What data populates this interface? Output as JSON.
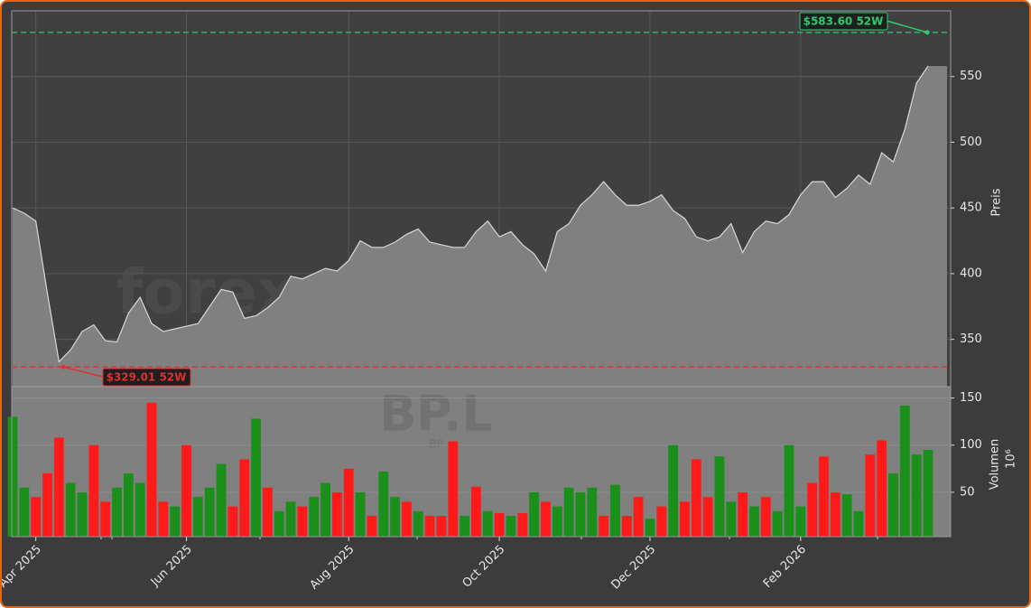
{
  "chart_data": [
    {
      "type": "area",
      "ylabel": "Preis",
      "color": "#808080",
      "line_color": "#d8d8d8",
      "categories": [
        null,
        null,
        "Apr 2025",
        null,
        null,
        null,
        null,
        null,
        null,
        null,
        null,
        null,
        null,
        null,
        null,
        "Jun 2025",
        null,
        null,
        null,
        null,
        null,
        null,
        null,
        null,
        null,
        null,
        null,
        null,
        null,
        "Aug 2025",
        null,
        null,
        null,
        null,
        null,
        null,
        null,
        null,
        null,
        null,
        null,
        null,
        "Oct 2025",
        null,
        null,
        null,
        null,
        null,
        null,
        null,
        null,
        null,
        null,
        null,
        null,
        "Dec 2025",
        null,
        null,
        null,
        null,
        null,
        null,
        null,
        null,
        null,
        null,
        null,
        null,
        "Feb 2026",
        null,
        null,
        null,
        null,
        null,
        null,
        null,
        null,
        null,
        null,
        null
      ],
      "values": [
        450,
        446,
        440,
        385,
        333,
        342,
        356,
        361,
        349,
        348,
        370,
        382,
        362,
        356,
        358,
        360,
        362,
        375,
        388,
        386,
        366,
        368,
        374,
        382,
        398,
        396,
        400,
        404,
        402,
        410,
        425,
        420,
        420,
        424,
        430,
        434,
        424,
        422,
        420,
        420,
        432,
        440,
        428,
        432,
        422,
        415,
        402,
        432,
        438,
        452,
        460,
        470,
        460,
        452,
        452,
        455,
        460,
        448,
        442,
        428,
        425,
        428,
        438,
        416,
        432,
        440,
        438,
        445,
        460,
        470,
        470,
        458,
        465,
        475,
        468,
        492,
        485,
        510,
        545,
        558
      ],
      "ylim": [
        314,
        600
      ],
      "yticks": [
        350,
        400,
        450,
        500,
        550
      ],
      "grid": true,
      "annotations": [
        {
          "value": 583.6,
          "label": "$583.60 52W",
          "color": "#2ecc71"
        },
        {
          "value": 329.01,
          "label": "$329.01 52W",
          "color": "#e03030"
        }
      ]
    },
    {
      "type": "bar",
      "ylabel": "Volumen",
      "ylabel_unit": "10⁶",
      "values": [
        130,
        55,
        45,
        70,
        108,
        60,
        50,
        100,
        40,
        55,
        70,
        60,
        145,
        40,
        35,
        100,
        45,
        55,
        80,
        35,
        85,
        128,
        55,
        30,
        40,
        35,
        45,
        60,
        50,
        75,
        50,
        25,
        72,
        45,
        40,
        30,
        25,
        25,
        104,
        25,
        56,
        30,
        28,
        25,
        28,
        50,
        40,
        35,
        55,
        50,
        55,
        25,
        58,
        25,
        45,
        22,
        35,
        100,
        40,
        85,
        45,
        88,
        40,
        50,
        35,
        45,
        30,
        100,
        35,
        60,
        88,
        50,
        48,
        30,
        90,
        105,
        70,
        142,
        90,
        95
      ],
      "colors": [
        "#1a8f1a",
        "#1a8f1a",
        "#ff1a1a",
        "#ff1a1a",
        "#ff1a1a",
        "#1a8f1a",
        "#1a8f1a",
        "#ff1a1a",
        "#ff1a1a",
        "#1a8f1a",
        "#1a8f1a",
        "#1a8f1a",
        "#ff1a1a",
        "#ff1a1a",
        "#1a8f1a",
        "#ff1a1a",
        "#1a8f1a",
        "#1a8f1a",
        "#1a8f1a",
        "#ff1a1a",
        "#ff1a1a",
        "#1a8f1a",
        "#ff1a1a",
        "#1a8f1a",
        "#1a8f1a",
        "#ff1a1a",
        "#1a8f1a",
        "#1a8f1a",
        "#ff1a1a",
        "#ff1a1a",
        "#1a8f1a",
        "#ff1a1a",
        "#1a8f1a",
        "#1a8f1a",
        "#ff1a1a",
        "#1a8f1a",
        "#ff1a1a",
        "#ff1a1a",
        "#ff1a1a",
        "#1a8f1a",
        "#ff1a1a",
        "#1a8f1a",
        "#ff1a1a",
        "#1a8f1a",
        "#ff1a1a",
        "#1a8f1a",
        "#ff1a1a",
        "#1a8f1a",
        "#1a8f1a",
        "#1a8f1a",
        "#1a8f1a",
        "#ff1a1a",
        "#1a8f1a",
        "#ff1a1a",
        "#ff1a1a",
        "#1a8f1a",
        "#ff1a1a",
        "#1a8f1a",
        "#ff1a1a",
        "#ff1a1a",
        "#ff1a1a",
        "#1a8f1a",
        "#1a8f1a",
        "#ff1a1a",
        "#1a8f1a",
        "#ff1a1a",
        "#1a8f1a",
        "#1a8f1a",
        "#1a8f1a",
        "#ff1a1a",
        "#ff1a1a",
        "#ff1a1a",
        "#1a8f1a",
        "#1a8f1a",
        "#ff1a1a",
        "#ff1a1a",
        "#1a8f1a",
        "#1a8f1a",
        "#1a8f1a",
        "#1a8f1a"
      ],
      "ylim": [
        3,
        162
      ],
      "yticks": [
        50,
        100,
        150
      ],
      "grid": true
    }
  ],
  "watermark": {
    "text": "forexsignale.trade",
    "symbol": "BP.L",
    "name": "BP"
  }
}
